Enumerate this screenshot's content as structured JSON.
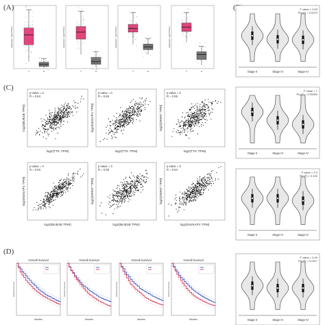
{
  "panel_labels": [
    "(A)",
    "(B)",
    "(C)",
    "(D)"
  ],
  "chart_data": [
    {
      "type": "box",
      "panel": "A",
      "ylabel": "Expression - log2 (TPM+1)",
      "categories": [
        "T",
        "N"
      ],
      "groups": [
        {
          "boxes": [
            {
              "q1": 3.4,
              "median": 4.8,
              "q3": 5.8,
              "whisker_low": 1.0,
              "whisker_high": 8.4,
              "color": "#e8457f"
            },
            {
              "q1": 0.3,
              "median": 0.6,
              "q3": 0.9,
              "whisker_low": 0.1,
              "whisker_high": 1.4,
              "color": "#777777"
            }
          ]
        },
        {
          "boxes": [
            {
              "q1": 4.2,
              "median": 5.2,
              "q3": 6.0,
              "whisker_low": 2.0,
              "whisker_high": 8.2,
              "color": "#e8457f"
            },
            {
              "q1": 0.6,
              "median": 1.0,
              "q3": 1.6,
              "whisker_low": 0.2,
              "whisker_high": 2.4,
              "color": "#777777"
            }
          ]
        },
        {
          "boxes": [
            {
              "q1": 5.2,
              "median": 5.7,
              "q3": 6.3,
              "whisker_low": 3.5,
              "whisker_high": 8.0,
              "color": "#e8457f"
            },
            {
              "q1": 2.7,
              "median": 3.1,
              "q3": 3.5,
              "whisker_low": 2.0,
              "whisker_high": 4.3,
              "color": "#777777"
            }
          ]
        },
        {
          "boxes": [
            {
              "q1": 5.3,
              "median": 5.9,
              "q3": 6.5,
              "whisker_low": 3.8,
              "whisker_high": 8.0,
              "color": "#e8457f"
            },
            {
              "q1": 1.3,
              "median": 2.0,
              "q3": 2.4,
              "whisker_low": 0.5,
              "whisker_high": 3.2,
              "color": "#777777"
            }
          ]
        }
      ]
    },
    {
      "type": "scatter",
      "panel": "C",
      "plots": [
        {
          "p_text": "p-value = 0",
          "r_text": "R = 0.64",
          "xlabel": "log2(TTK TPM)",
          "ylabel": "log2(BUB1B TPM)",
          "n": 400,
          "slope": 0.75,
          "noise": 0.55
        },
        {
          "p_text": "p-value = 0",
          "r_text": "R = 0.65",
          "xlabel": "log2(TTK TPM)",
          "ylabel": "log2(NUSAP1 TPM)",
          "n": 400,
          "slope": 0.75,
          "noise": 0.55
        },
        {
          "p_text": "p-value = 0",
          "r_text": "R = 0.56",
          "xlabel": "log2(TTK TPM)",
          "ylabel": "log2(ZWINT TPM)",
          "n": 400,
          "slope": 0.7,
          "noise": 0.65
        },
        {
          "p_text": "p-value = 0",
          "r_text": "R = 0.63",
          "xlabel": "log2(BUB1B TPM)",
          "ylabel": "log2(NUSAP1 TPM)",
          "n": 400,
          "slope": 0.85,
          "noise": 0.4
        },
        {
          "p_text": "p-value = 0",
          "r_text": "R = 0.58",
          "xlabel": "log2(BUB1B TPM)",
          "ylabel": "log2(ZWINT TPM)",
          "n": 400,
          "slope": 0.7,
          "noise": 0.6
        },
        {
          "p_text": "p-value = 0",
          "r_text": "R = 0.64",
          "xlabel": "log2(NUSAP1 TPM)",
          "ylabel": "log2(ZWINT TPM)",
          "n": 400,
          "slope": 0.75,
          "noise": 0.55
        }
      ]
    },
    {
      "type": "violin",
      "panel": "B",
      "categories": [
        "Stage II",
        "Stage III",
        "Stage IV"
      ],
      "plots": [
        {
          "f_text": "F value = 3.93",
          "p_text": "Pr(>F) = 0.0274",
          "medians": [
            5.3,
            4.7,
            4.6
          ]
        },
        {
          "f_text": "F value = 7",
          "p_text": "Pr(>F) = 0.00054",
          "medians": [
            6.2,
            4.8,
            4.1
          ]
        },
        {
          "f_text": "F value = 2.3",
          "p_text": "Pr(>F) = 0.102",
          "medians": [
            5.4,
            5.4,
            5.0
          ]
        },
        {
          "f_text": "F value = 4.49",
          "p_text": "Pr(>F) = 0.0117",
          "medians": [
            5.0,
            4.6,
            4.6
          ]
        }
      ]
    },
    {
      "type": "line",
      "panel": "D",
      "title": "Overall Survival",
      "xlabel": "Months",
      "ylabel": "Percent survival",
      "plots": [
        {},
        {},
        {},
        {}
      ]
    }
  ]
}
